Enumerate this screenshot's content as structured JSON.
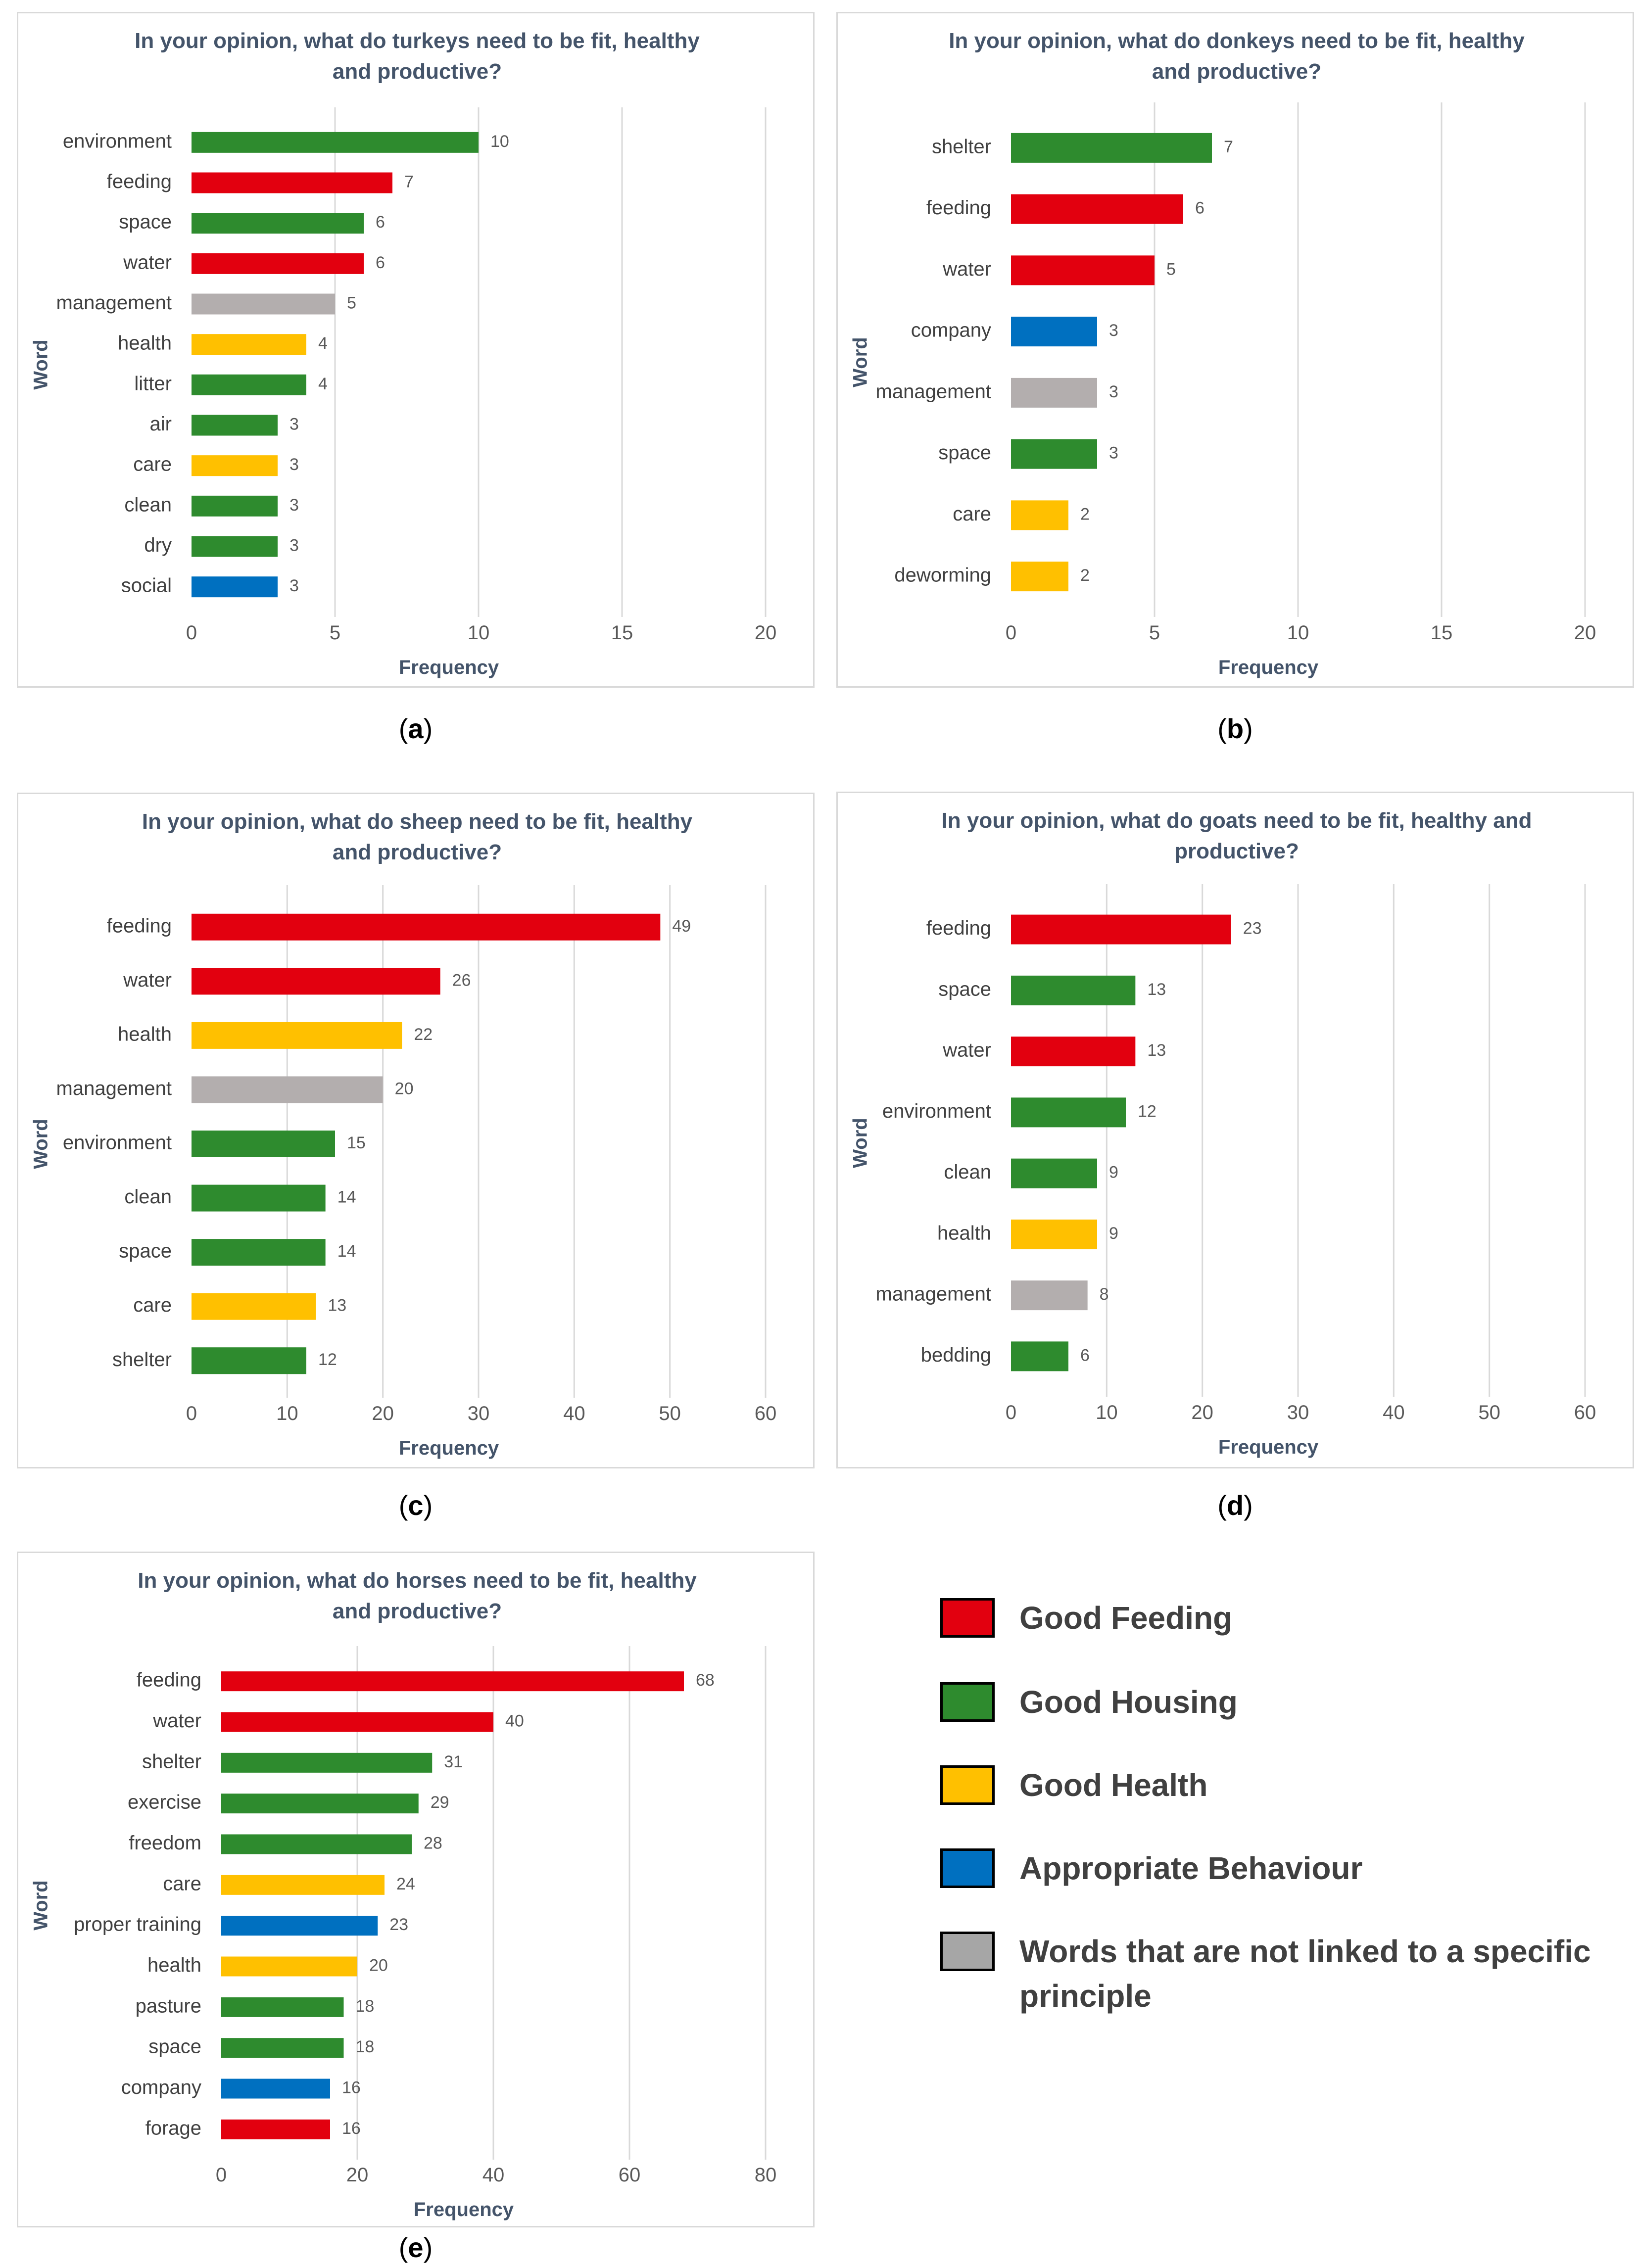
{
  "colors": {
    "feeding": "#e2000f",
    "housing": "#2e8b2e",
    "health": "#ffc000",
    "behaviour": "#0070c0",
    "none": "#b3aeae"
  },
  "legend": [
    {
      "label": "Good Feeding",
      "color": "#e2000f"
    },
    {
      "label": "Good Housing",
      "color": "#2e8b2e"
    },
    {
      "label": "Good Health",
      "color": "#ffc000"
    },
    {
      "label": "Appropriate Behaviour",
      "color": "#0070c0"
    },
    {
      "label": "Words that are not linked to a specific principle",
      "color": "#a6a6a6"
    }
  ],
  "captions": [
    {
      "paren_open": "(",
      "letter": "a",
      "paren_close": ")"
    },
    {
      "paren_open": "(",
      "letter": "b",
      "paren_close": ")"
    },
    {
      "paren_open": "(",
      "letter": "c",
      "paren_close": ")"
    },
    {
      "paren_open": "(",
      "letter": "d",
      "paren_close": ")"
    },
    {
      "paren_open": "(",
      "letter": "e",
      "paren_close": ")"
    }
  ],
  "chart_data": [
    {
      "id": "a",
      "type": "bar",
      "orientation": "horizontal",
      "title": [
        "In your opinion, what do turkeys need to be fit, healthy",
        "and productive?"
      ],
      "xlabel": "Frequency",
      "ylabel": "Word",
      "xlim": [
        0,
        20
      ],
      "xticks": [
        0,
        5,
        10,
        15,
        20
      ],
      "categories": [
        "environment",
        "feeding",
        "space",
        "water",
        "management",
        "health",
        "litter",
        "air",
        "care",
        "clean",
        "dry",
        "social"
      ],
      "values": [
        10,
        7,
        6,
        6,
        5,
        4,
        4,
        3,
        3,
        3,
        3,
        3
      ],
      "principles": [
        "housing",
        "feeding",
        "housing",
        "feeding",
        "none",
        "health",
        "housing",
        "housing",
        "health",
        "housing",
        "housing",
        "behaviour"
      ]
    },
    {
      "id": "b",
      "type": "bar",
      "orientation": "horizontal",
      "title": [
        "In your opinion, what do donkeys need to be fit, healthy",
        "and productive?"
      ],
      "xlabel": "Frequency",
      "ylabel": "Word",
      "xlim": [
        0,
        20
      ],
      "xticks": [
        0,
        5,
        10,
        15,
        20
      ],
      "categories": [
        "shelter",
        "feeding",
        "water",
        "company",
        "management",
        "space",
        "care",
        "deworming"
      ],
      "values": [
        7,
        6,
        5,
        3,
        3,
        3,
        2,
        2
      ],
      "principles": [
        "housing",
        "feeding",
        "feeding",
        "behaviour",
        "none",
        "housing",
        "health",
        "health"
      ]
    },
    {
      "id": "c",
      "type": "bar",
      "orientation": "horizontal",
      "title": [
        "In your opinion, what do sheep need to be fit, healthy",
        "and productive?"
      ],
      "xlabel": "Frequency",
      "ylabel": "Word",
      "xlim": [
        0,
        60
      ],
      "xticks": [
        0,
        10,
        20,
        30,
        40,
        50,
        60
      ],
      "categories": [
        "feeding",
        "water",
        "health",
        "management",
        "environment",
        "clean",
        "space",
        "care",
        "shelter"
      ],
      "values": [
        49,
        26,
        22,
        20,
        15,
        14,
        14,
        13,
        12
      ],
      "principles": [
        "feeding",
        "feeding",
        "health",
        "none",
        "housing",
        "housing",
        "housing",
        "health",
        "housing"
      ]
    },
    {
      "id": "d",
      "type": "bar",
      "orientation": "horizontal",
      "title": [
        "In your opinion, what do goats need to be fit, healthy and",
        "productive?"
      ],
      "xlabel": "Frequency",
      "ylabel": "Word",
      "xlim": [
        0,
        60
      ],
      "xticks": [
        0,
        10,
        20,
        30,
        40,
        50,
        60
      ],
      "categories": [
        "feeding",
        "space",
        "water",
        "environment",
        "clean",
        "health",
        "management",
        "bedding"
      ],
      "values": [
        23,
        13,
        13,
        12,
        9,
        9,
        8,
        6
      ],
      "principles": [
        "feeding",
        "housing",
        "feeding",
        "housing",
        "housing",
        "health",
        "none",
        "housing"
      ]
    },
    {
      "id": "e",
      "type": "bar",
      "orientation": "horizontal",
      "title": [
        "In your opinion, what do horses need to be fit, healthy",
        "and productive?"
      ],
      "xlabel": "Frequency",
      "ylabel": "Word",
      "xlim": [
        0,
        80
      ],
      "xticks": [
        0,
        20,
        40,
        60,
        80
      ],
      "categories": [
        "feeding",
        "water",
        "shelter",
        "exercise",
        "freedom",
        "care",
        "proper training",
        "health",
        "pasture",
        "space",
        "company",
        "forage"
      ],
      "values": [
        68,
        40,
        31,
        29,
        28,
        24,
        23,
        20,
        18,
        18,
        16,
        16
      ],
      "principles": [
        "feeding",
        "feeding",
        "housing",
        "housing",
        "housing",
        "health",
        "behaviour",
        "health",
        "housing",
        "housing",
        "behaviour",
        "feeding"
      ]
    }
  ]
}
